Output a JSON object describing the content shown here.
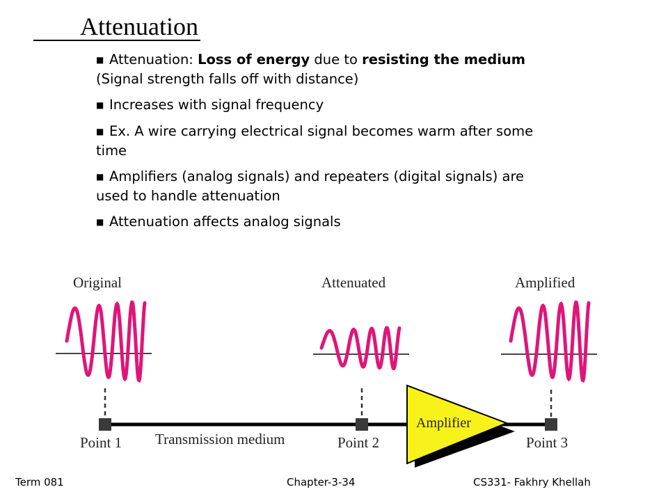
{
  "slide": {
    "title": "Attenuation",
    "bullets": [
      {
        "parts": [
          {
            "text": "Attenuation: ",
            "bold": false
          },
          {
            "text": "Loss of energy",
            "bold": true
          },
          {
            "text": " due to ",
            "bold": false
          },
          {
            "text": "resisting the medium",
            "bold": true
          },
          {
            "text": " (Signal strength falls off with distance)",
            "bold": false
          }
        ]
      },
      {
        "parts": [
          {
            "text": "Increases with signal frequency",
            "bold": false
          }
        ]
      },
      {
        "parts": [
          {
            "text": "Ex. A wire carrying electrical signal becomes warm after some time",
            "bold": false
          }
        ]
      },
      {
        "parts": [
          {
            "text": "Amplifiers (analog signals) and repeaters  (digital signals) are used to handle attenuation",
            "bold": false
          }
        ]
      },
      {
        "parts": [
          {
            "text": "Attenuation affects analog signals",
            "bold": false
          }
        ]
      }
    ]
  },
  "diagram": {
    "signal_labels": {
      "original": "Original",
      "attenuated": "Attenuated",
      "amplified": "Amplified"
    },
    "point_labels": {
      "p1": "Point 1",
      "p2": "Point 2",
      "p3": "Point 3"
    },
    "medium_label": "Transmission medium",
    "amplifier_label": "Amplifier",
    "colors": {
      "signal": "#e0157a",
      "amplifier_fill": "#f7f21a",
      "line": "#000000",
      "point": "#3a3a3a"
    }
  },
  "footer": {
    "left": "Term 081",
    "center": "Chapter-3-34",
    "right": "CS331- Fakhry Khellah"
  }
}
